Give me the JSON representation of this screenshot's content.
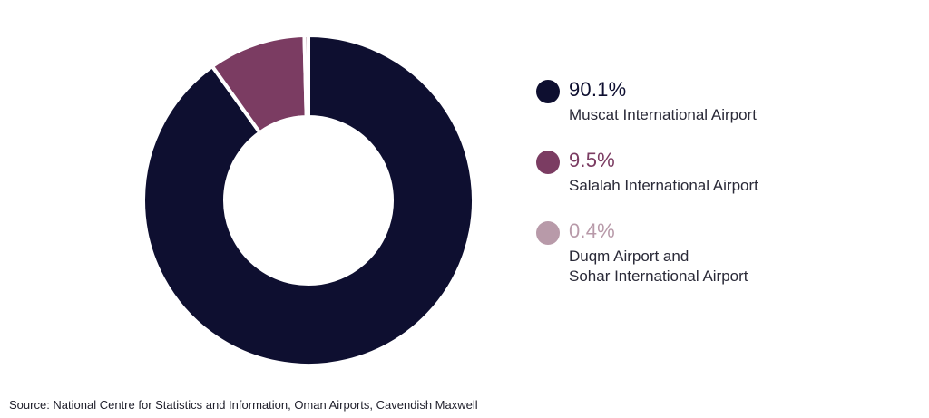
{
  "chart_data": {
    "type": "pie",
    "donut": true,
    "legend_placement": "right",
    "slices": [
      {
        "value": 90.1,
        "display": "90.1%",
        "label": "Muscat International Airport",
        "color": "#0e0f30"
      },
      {
        "value": 9.5,
        "display": "9.5%",
        "label": "Salalah International Airport",
        "color": "#7b3c62"
      },
      {
        "value": 0.4,
        "display": "0.4%",
        "label": "Duqm Airport and\nSohar International Airport",
        "color": "#b89aa9"
      }
    ]
  },
  "source": "Source: National Centre for Statistics and Information, Oman Airports, Cavendish Maxwell"
}
